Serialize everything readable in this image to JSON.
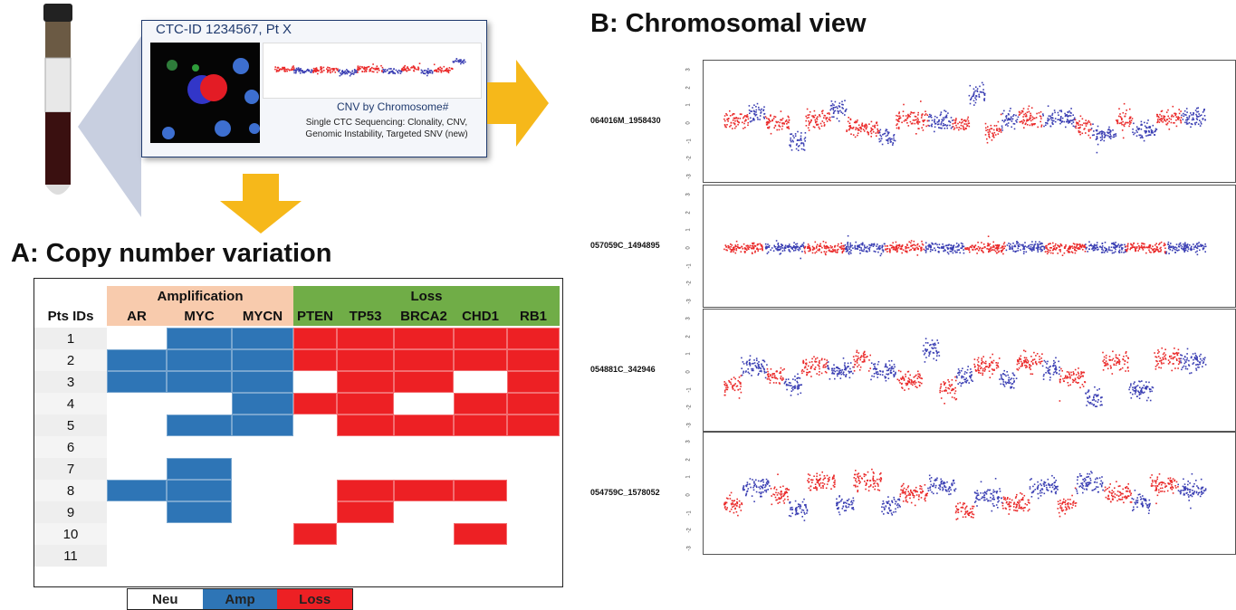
{
  "ctc_card": {
    "title": "CTC-ID 1234567, Pt X",
    "cnv_caption": "CNV by Chromosome#",
    "seq_caption_line1": "Single CTC Sequencing: Clonality, CNV,",
    "seq_caption_line2": "Genomic Instability, Targeted SNV (new)"
  },
  "section_a": {
    "title": "A: Copy number variation"
  },
  "section_b": {
    "title": "B: Chromosomal view"
  },
  "cnv_table": {
    "header_groups": [
      {
        "label": "Amplification",
        "span": 3,
        "color": "#f8cbad"
      },
      {
        "label": "Loss",
        "span": 5,
        "color": "#70ad47"
      }
    ],
    "id_header": "Pts IDs",
    "genes": [
      "AR",
      "MYC",
      "MYCN",
      "PTEN",
      "TP53",
      "BRCA2",
      "CHD1",
      "RB1"
    ],
    "rows": [
      {
        "id": "1",
        "states": [
          "neu",
          "amp",
          "amp",
          "loss",
          "loss",
          "loss",
          "loss",
          "loss"
        ]
      },
      {
        "id": "2",
        "states": [
          "amp",
          "amp",
          "amp",
          "loss",
          "loss",
          "loss",
          "loss",
          "loss"
        ]
      },
      {
        "id": "3",
        "states": [
          "amp",
          "amp",
          "amp",
          "neu",
          "loss",
          "loss",
          "neu",
          "loss"
        ]
      },
      {
        "id": "4",
        "states": [
          "neu",
          "neu",
          "amp",
          "loss",
          "loss",
          "neu",
          "loss",
          "loss"
        ]
      },
      {
        "id": "5",
        "states": [
          "neu",
          "amp",
          "amp",
          "neu",
          "loss",
          "loss",
          "loss",
          "loss"
        ]
      },
      {
        "id": "6",
        "states": [
          "neu",
          "neu",
          "neu",
          "neu",
          "neu",
          "neu",
          "neu",
          "neu"
        ]
      },
      {
        "id": "7",
        "states": [
          "neu",
          "amp",
          "neu",
          "neu",
          "neu",
          "neu",
          "neu",
          "neu"
        ]
      },
      {
        "id": "8",
        "states": [
          "amp",
          "amp",
          "neu",
          "neu",
          "loss",
          "loss",
          "loss",
          "neu"
        ]
      },
      {
        "id": "9",
        "states": [
          "neu",
          "amp",
          "neu",
          "neu",
          "loss",
          "neu",
          "neu",
          "neu"
        ]
      },
      {
        "id": "10",
        "states": [
          "neu",
          "neu",
          "neu",
          "loss",
          "neu",
          "neu",
          "loss",
          "neu"
        ]
      },
      {
        "id": "11",
        "states": [
          "neu",
          "neu",
          "neu",
          "neu",
          "neu",
          "neu",
          "neu",
          "neu"
        ]
      }
    ],
    "state_colors": {
      "neu": "#ffffff",
      "amp": "#2e75b6",
      "loss": "#ed2024"
    }
  },
  "legend": [
    {
      "label": "Neu",
      "color": "#ffffff"
    },
    {
      "label": "Amp",
      "color": "#2e75b6"
    },
    {
      "label": "Loss",
      "color": "#ed2024"
    }
  ],
  "chromosomal_panels": [
    {
      "sample": "064016M_1958430"
    },
    {
      "sample": "057059C_1494895"
    },
    {
      "sample": "054881C_342946"
    },
    {
      "sample": "054759C_1578052"
    }
  ],
  "y_ticks": [
    "3",
    "2",
    "1",
    "0",
    "-1",
    "-2",
    "-3"
  ],
  "colors": {
    "arrow": "#f6b81a",
    "blue_dots": "#3b3fb3",
    "red_dots": "#ea2a2a",
    "navy": "#1f3a6e"
  }
}
